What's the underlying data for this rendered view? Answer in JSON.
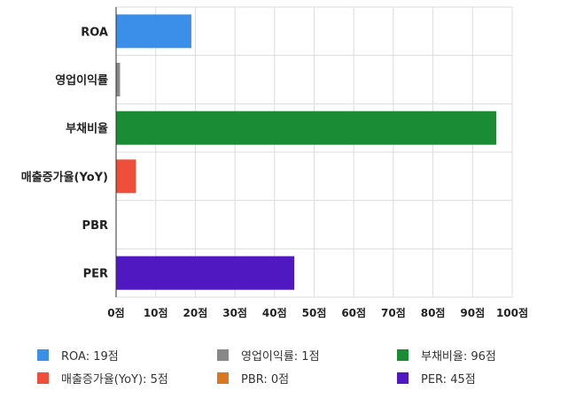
{
  "chart_data": {
    "type": "bar",
    "orientation": "horizontal",
    "categories": [
      "ROA",
      "영업이익률",
      "부채비율",
      "매출증가율(YoY)",
      "PBR",
      "PER"
    ],
    "values": [
      19,
      1,
      96,
      5,
      0,
      45
    ],
    "colors": [
      "#3b8fe8",
      "#888888",
      "#1a8c36",
      "#ee4e3a",
      "#d97820",
      "#5018c0"
    ],
    "xlim": [
      0,
      100
    ],
    "ticks": [
      0,
      10,
      20,
      30,
      40,
      50,
      60,
      70,
      80,
      90,
      100
    ],
    "tick_labels": [
      "0점",
      "10점",
      "20점",
      "30점",
      "40점",
      "50점",
      "60점",
      "70점",
      "80점",
      "90점",
      "100점"
    ],
    "grid": true,
    "legend_position": "bottom",
    "legend": [
      "ROA: 19점",
      "영업이익률: 1점",
      "부채비율: 96점",
      "매출증가율(YoY): 5점",
      "PBR: 0점",
      "PER: 45점"
    ]
  }
}
